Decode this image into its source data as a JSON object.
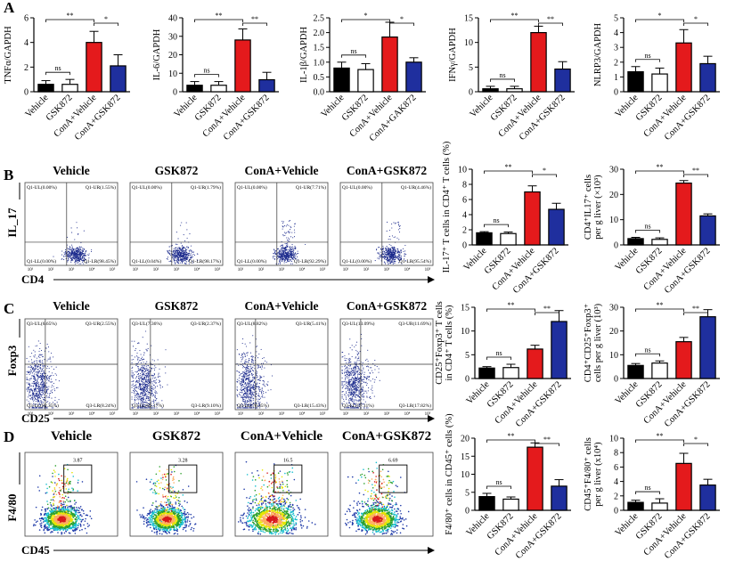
{
  "panels": [
    "A",
    "B",
    "C",
    "D"
  ],
  "chart_data": [
    {
      "type": "bar",
      "ylabel": [
        "TNFα/GAPDH"
      ],
      "categories": [
        "Vehicle",
        "GSK872",
        "ConA+Vehicle",
        "ConA+GSK872"
      ],
      "values": [
        0.6,
        0.6,
        4.0,
        2.1
      ],
      "errors": [
        0.3,
        0.4,
        0.9,
        0.9
      ],
      "colors": [
        "#000000",
        "#ffffff",
        "#e41a1c",
        "#1f2f9e"
      ],
      "ylim": [
        0,
        6
      ],
      "yticks": [
        0,
        2,
        4,
        6
      ],
      "annotations": [
        "**",
        "*",
        "ns"
      ]
    },
    {
      "type": "bar",
      "ylabel": [
        "IL-6/GAPDH"
      ],
      "categories": [
        "Vehicle",
        "GSK872",
        "ConA+Vehicle",
        "ConA+GSK872"
      ],
      "values": [
        3.5,
        3.5,
        28,
        6.5
      ],
      "errors": [
        2,
        2,
        6,
        4
      ],
      "colors": [
        "#000000",
        "#ffffff",
        "#e41a1c",
        "#1f2f9e"
      ],
      "ylim": [
        0,
        40
      ],
      "yticks": [
        0,
        10,
        20,
        30,
        40
      ],
      "annotations": [
        "**",
        "**",
        "ns"
      ]
    },
    {
      "type": "bar",
      "ylabel": [
        "IL-1β/GAPDH"
      ],
      "categories": [
        "Vehicle",
        "GSK872",
        "ConA+Vehicle",
        "ConA+GAK872"
      ],
      "values": [
        0.8,
        0.75,
        1.85,
        1.0
      ],
      "errors": [
        0.2,
        0.2,
        0.5,
        0.15
      ],
      "colors": [
        "#000000",
        "#ffffff",
        "#e41a1c",
        "#1f2f9e"
      ],
      "ylim": [
        0,
        2.5
      ],
      "yticks": [
        {
          "value": 0,
          "label": "0.0"
        },
        0.5,
        {
          "value": 1,
          "label": "1.0"
        },
        1.5,
        {
          "value": 2,
          "label": "2.0"
        },
        2.5
      ],
      "annotations": [
        "*",
        "*",
        "ns"
      ]
    },
    {
      "type": "bar",
      "ylabel": [
        "IFNγ/GAPDH"
      ],
      "categories": [
        "Vehicle",
        "GSK872",
        "ConA+Vehicle",
        "ConA+GSK872"
      ],
      "values": [
        0.6,
        0.6,
        12,
        4.6
      ],
      "errors": [
        0.5,
        0.5,
        1.3,
        1.5
      ],
      "colors": [
        "#000000",
        "#ffffff",
        "#e41a1c",
        "#1f2f9e"
      ],
      "ylim": [
        0,
        15
      ],
      "yticks": [
        0,
        5,
        10,
        15
      ],
      "annotations": [
        "**",
        "**",
        "ns"
      ]
    },
    {
      "type": "bar",
      "ylabel": [
        "NLRP3/GAPDH"
      ],
      "categories": [
        "Vehicle",
        "GSK872",
        "ConA+Vehicle",
        "ConA+GSK872"
      ],
      "values": [
        1.35,
        1.2,
        3.3,
        1.9
      ],
      "errors": [
        0.35,
        0.4,
        0.9,
        0.5
      ],
      "colors": [
        "#000000",
        "#ffffff",
        "#e41a1c",
        "#1f2f9e"
      ],
      "ylim": [
        0,
        5
      ],
      "yticks": [
        0,
        1,
        2,
        3,
        4,
        5
      ],
      "annotations": [
        "*",
        "*",
        "ns"
      ]
    },
    {
      "type": "bar",
      "ylabel": [
        "IL-17⁺ T cells in CD4⁺ T cells (%)"
      ],
      "categories": [
        "Vehicle",
        "GSK872",
        "ConA+Vehicle",
        "ConA+GSK872"
      ],
      "values": [
        1.6,
        1.5,
        7.0,
        4.7
      ],
      "errors": [
        0.15,
        0.2,
        0.8,
        0.8
      ],
      "colors": [
        "#000000",
        "#ffffff",
        "#e41a1c",
        "#1f2f9e"
      ],
      "ylim": [
        0,
        10
      ],
      "yticks": [
        0,
        2,
        4,
        6,
        8,
        10
      ],
      "annotations": [
        "**",
        "*",
        "ns"
      ]
    },
    {
      "type": "bar",
      "ylabel": [
        "CD4⁺IL17⁺ cells",
        "per g liver (×10³)"
      ],
      "categories": [
        "Vehicle",
        "GSK872",
        "ConA+Vehicle",
        "ConA+GSK872"
      ],
      "values": [
        2.5,
        2.2,
        24.5,
        11.5
      ],
      "errors": [
        0.5,
        0.6,
        1,
        0.8
      ],
      "colors": [
        "#000000",
        "#ffffff",
        "#e41a1c",
        "#1f2f9e"
      ],
      "ylim": [
        0,
        30
      ],
      "yticks": [
        0,
        10,
        20,
        30
      ],
      "annotations": [
        "**",
        "**",
        "ns"
      ]
    },
    {
      "type": "bar",
      "ylabel": [
        "CD25⁺Foxp3⁺ T cells",
        "in CD4⁺ T cells (%)"
      ],
      "categories": [
        "Vehicle",
        "GSK872",
        "ConA+Vehicle",
        "ConA+GSK872"
      ],
      "values": [
        2.2,
        2.3,
        6.2,
        12
      ],
      "errors": [
        0.3,
        0.7,
        0.8,
        2.3
      ],
      "colors": [
        "#000000",
        "#ffffff",
        "#e41a1c",
        "#1f2f9e"
      ],
      "ylim": [
        0,
        15
      ],
      "yticks": [
        0,
        5,
        10,
        15
      ],
      "annotations": [
        "**",
        "**",
        "ns"
      ]
    },
    {
      "type": "bar",
      "ylabel": [
        "CD4⁺CD25⁺Foxp3⁺",
        "cells per g liver (10³)"
      ],
      "categories": [
        "Vehicle",
        "GSK872",
        "ConA+Vehicle",
        "ConA+GSK872"
      ],
      "values": [
        5.5,
        6.5,
        15.5,
        26
      ],
      "errors": [
        0.8,
        0.9,
        1.8,
        3
      ],
      "colors": [
        "#000000",
        "#ffffff",
        "#e41a1c",
        "#1f2f9e"
      ],
      "ylim": [
        0,
        30
      ],
      "yticks": [
        0,
        10,
        20,
        30
      ],
      "annotations": [
        "**",
        "**",
        "ns"
      ]
    },
    {
      "type": "bar",
      "ylabel": [
        "F4/80⁺ cells in CD45⁺ cells (%)"
      ],
      "categories": [
        "Vehicle",
        "GSK872",
        "ConA+Vehicle",
        "ConA+GSK872"
      ],
      "values": [
        3.8,
        3.1,
        17.5,
        6.7
      ],
      "errors": [
        0.9,
        0.6,
        1.2,
        1.8
      ],
      "colors": [
        "#000000",
        "#ffffff",
        "#e41a1c",
        "#1f2f9e"
      ],
      "ylim": [
        0,
        20
      ],
      "yticks": [
        0,
        5,
        10,
        15,
        20
      ],
      "annotations": [
        "**",
        "**",
        "ns"
      ]
    },
    {
      "type": "bar",
      "ylabel": [
        "CD45⁺F4/80⁺ cells",
        "per g liver (x10⁴)"
      ],
      "categories": [
        "Vehicle",
        "GSK872",
        "ConA+Vehicle",
        "ConA+GSK872"
      ],
      "values": [
        1.1,
        1.0,
        6.5,
        3.5
      ],
      "errors": [
        0.3,
        0.6,
        1.4,
        0.8
      ],
      "colors": [
        "#000000",
        "#ffffff",
        "#e41a1c",
        "#1f2f9e"
      ],
      "ylim": [
        0,
        10
      ],
      "yticks": [
        0,
        2,
        4,
        6,
        8,
        10
      ],
      "annotations": [
        "**",
        "*",
        "ns"
      ]
    }
  ],
  "flow": [
    {
      "x_label": "CD4",
      "y_label": "IL_17",
      "ticks": [
        "10¹",
        "10²",
        "10³",
        "10⁴",
        "10⁵"
      ],
      "plots": [
        {
          "title": "Vehicle",
          "quadrants": [
            "Q1-UL(0.00%)",
            "Q1-UR(1.55%)",
            "Q1-LL(0.00%)",
            "Q1-LR(98.45%)"
          ]
        },
        {
          "title": "GSK872",
          "quadrants": [
            "Q1-UL(0.00%)",
            "Q1-UR(1.79%)",
            "Q1-LL(0.04%)",
            "Q1-LR(98.17%)"
          ]
        },
        {
          "title": "ConA+Vehicle",
          "quadrants": [
            "Q1-UL(0.00%)",
            "Q1-UR(7.71%)",
            "Q1-LL(0.00%)",
            "Q1-LR(92.29%)"
          ]
        },
        {
          "title": "ConA+GSK872",
          "quadrants": [
            "Q1-UL(0.00%)",
            "Q1-UR(4.46%)",
            "Q1-LL(0.00%)",
            "Q1-LR(95.54%)"
          ]
        }
      ]
    },
    {
      "x_label": "CD25",
      "y_label": "Foxp3",
      "ticks": [
        "10¹",
        "10²",
        "10³",
        "10⁴",
        "10⁵"
      ],
      "plots": [
        {
          "title": "Vehicle",
          "quadrants": [
            "Q3-UL(6.65%)",
            "Q3-UR(2.55%)",
            "Q3-LL(82.35%)",
            "Q3-LR(8.24%)"
          ]
        },
        {
          "title": "GSK872",
          "quadrants": [
            "Q3-UL(7.36%)",
            "Q3-UR(2.37%)",
            "Q3-LL(81.17%)",
            "Q3-LR(9.10%)"
          ]
        },
        {
          "title": "ConA+Vehicle",
          "quadrants": [
            "Q3-UL(8.82%)",
            "Q3-UR(5.41%)",
            "Q3-LL(70.35%)",
            "Q3-LR(15.43%)"
          ]
        },
        {
          "title": "ConA+GSK872",
          "quadrants": [
            "Q3-UL(13.09%)",
            "Q3-UR(11.69%)",
            "Q3-LL(57.11%)",
            "Q3-LR(17.82%)"
          ]
        }
      ]
    },
    {
      "x_label": "CD45",
      "y_label": "F4/80",
      "plots": [
        {
          "title": "Vehicle",
          "gate": "3.87"
        },
        {
          "title": "GSK872",
          "gate": "3.28"
        },
        {
          "title": "ConA+Vehicle",
          "gate": "16.5"
        },
        {
          "title": "ConA+GSK872",
          "gate": "6.69"
        }
      ]
    }
  ]
}
